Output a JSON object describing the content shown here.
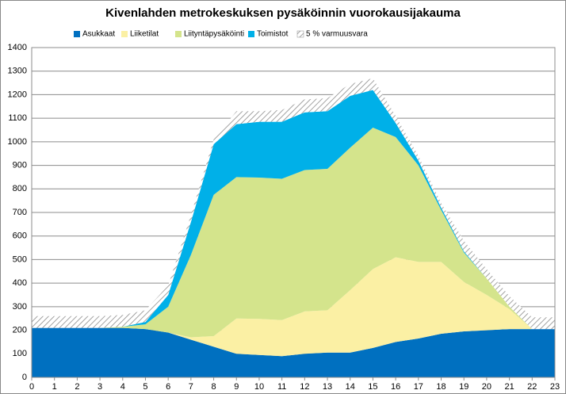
{
  "chart_data": {
    "type": "stacked_area",
    "title": "Kivenlahden metrokeskuksen pysäköinnin vuorokausijakauma",
    "x": [
      0,
      1,
      2,
      3,
      4,
      5,
      6,
      7,
      8,
      9,
      10,
      11,
      12,
      13,
      14,
      15,
      16,
      17,
      18,
      19,
      20,
      21,
      22,
      23
    ],
    "xlim": [
      0,
      23
    ],
    "xticks": [
      0,
      1,
      2,
      3,
      4,
      5,
      6,
      7,
      8,
      9,
      10,
      11,
      12,
      13,
      14,
      15,
      16,
      17,
      18,
      19,
      20,
      21,
      22,
      23
    ],
    "ylim": [
      0,
      1400
    ],
    "yticks": [
      0,
      100,
      200,
      300,
      400,
      500,
      600,
      700,
      800,
      900,
      1000,
      1100,
      1200,
      1300,
      1400
    ],
    "grid": true,
    "series": [
      {
        "name": "Asukkaat",
        "color": "#0070c0",
        "values": [
          210,
          210,
          210,
          210,
          210,
          205,
          190,
          160,
          130,
          100,
          95,
          90,
          100,
          105,
          105,
          125,
          150,
          165,
          185,
          195,
          200,
          205,
          205,
          205
        ]
      },
      {
        "name": "Liiketilat",
        "color": "#fbf0a4",
        "values": [
          0,
          0,
          0,
          0,
          0,
          0,
          0,
          10,
          45,
          150,
          153,
          153,
          180,
          180,
          265,
          335,
          360,
          325,
          305,
          210,
          150,
          85,
          0,
          0
        ]
      },
      {
        "name": "Liityntäpysäköinti",
        "color": "#d4e48c",
        "values": [
          0,
          0,
          0,
          0,
          5,
          20,
          110,
          350,
          600,
          600,
          600,
          600,
          600,
          600,
          605,
          600,
          510,
          410,
          220,
          125,
          70,
          10,
          0,
          0
        ]
      },
      {
        "name": "Toimistot",
        "color": "#00b0e8",
        "values": [
          0,
          0,
          0,
          0,
          0,
          10,
          50,
          140,
          215,
          225,
          237,
          242,
          245,
          245,
          220,
          160,
          60,
          20,
          10,
          5,
          0,
          0,
          0,
          0
        ]
      },
      {
        "name": "5 % varmuusvara",
        "color": "#8c8c8c",
        "hatch": true,
        "values": [
          50,
          50,
          50,
          50,
          50,
          50,
          40,
          30,
          20,
          55,
          45,
          50,
          55,
          55,
          50,
          50,
          30,
          20,
          20,
          45,
          40,
          45,
          50,
          50
        ]
      }
    ]
  }
}
